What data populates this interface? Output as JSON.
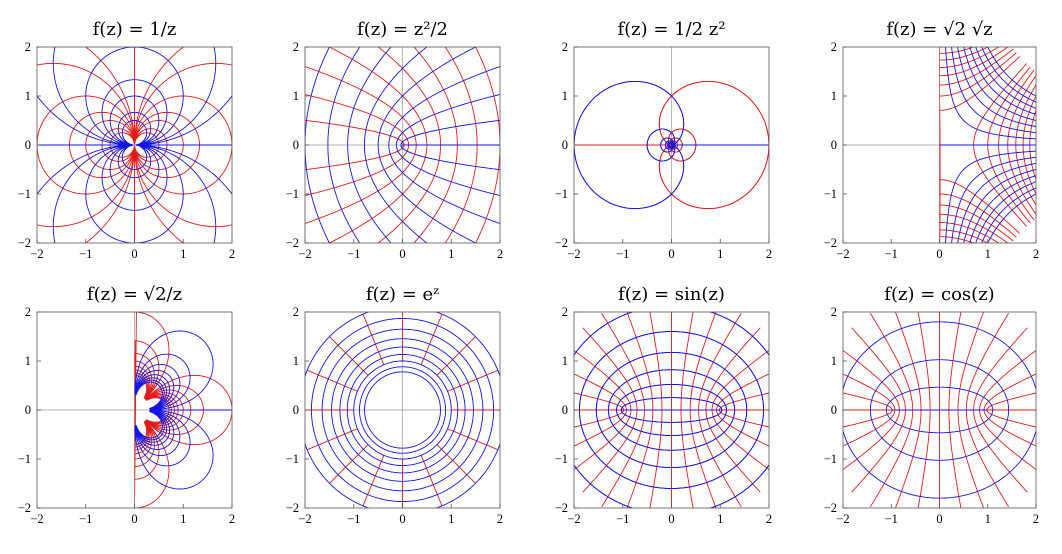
{
  "colors": {
    "blue": "#1515e6",
    "red": "#e11b1b",
    "frame": "#555555",
    "axis": "#9a9a9a"
  },
  "chart_data": [
    {
      "type": "line",
      "title": "f(z) = 1/z",
      "xlim": [
        -2,
        2
      ],
      "ylim": [
        -2,
        2
      ],
      "xticks": [
        -2,
        -1,
        0,
        1,
        2
      ],
      "yticks": [
        -2,
        -1,
        0,
        1,
        2
      ],
      "grid": false
    },
    {
      "type": "line",
      "title": "f(z) = z²/2",
      "xlim": [
        -2,
        2
      ],
      "ylim": [
        -2,
        2
      ],
      "xticks": [
        -2,
        -1,
        0,
        1,
        2
      ],
      "yticks": [
        -2,
        -1,
        0,
        1,
        2
      ],
      "grid": false
    },
    {
      "type": "line",
      "title": "f(z) = 1/2 z²",
      "xlim": [
        -2,
        2
      ],
      "ylim": [
        -2,
        2
      ],
      "xticks": [
        -2,
        -1,
        0,
        1,
        2
      ],
      "yticks": [
        -2,
        -1,
        0,
        1,
        2
      ],
      "grid": false
    },
    {
      "type": "line",
      "title": "f(z) = √2 √z",
      "xlim": [
        -2,
        2
      ],
      "ylim": [
        -2,
        2
      ],
      "xticks": [
        -2,
        -1,
        0,
        1,
        2
      ],
      "yticks": [
        -2,
        -1,
        0,
        1,
        2
      ],
      "grid": false
    },
    {
      "type": "line",
      "title": "f(z) = √2/z",
      "xlim": [
        -2,
        2
      ],
      "ylim": [
        -2,
        2
      ],
      "xticks": [
        -2,
        -1,
        0,
        1,
        2
      ],
      "yticks": [
        -2,
        -1,
        0,
        1,
        2
      ],
      "grid": false
    },
    {
      "type": "line",
      "title": "f(z) = eᶻ",
      "xlim": [
        -2,
        2
      ],
      "ylim": [
        -2,
        2
      ],
      "xticks": [
        -2,
        -1,
        0,
        1,
        2
      ],
      "yticks": [
        -2,
        -1,
        0,
        1,
        2
      ],
      "grid": false
    },
    {
      "type": "line",
      "title": "f(z) = sin(z)",
      "xlim": [
        -2,
        2
      ],
      "ylim": [
        -2,
        2
      ],
      "xticks": [
        -2,
        -1,
        0,
        1,
        2
      ],
      "yticks": [
        -2,
        -1,
        0,
        1,
        2
      ],
      "grid": false
    },
    {
      "type": "line",
      "title": "f(z) = cos(z)",
      "xlim": [
        -2,
        2
      ],
      "ylim": [
        -2,
        2
      ],
      "xticks": [
        -2,
        -1,
        0,
        1,
        2
      ],
      "yticks": [
        -2,
        -1,
        0,
        1,
        2
      ],
      "grid": false
    }
  ]
}
